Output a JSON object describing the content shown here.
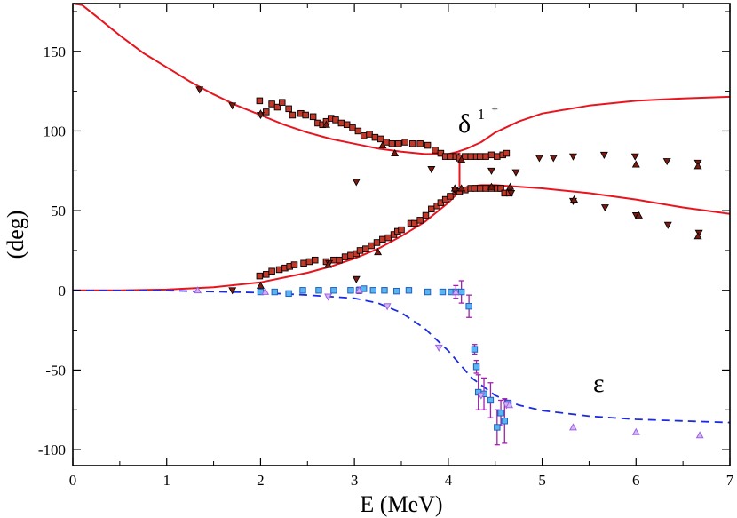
{
  "chart_data": {
    "type": "scatter",
    "title": "",
    "xlabel": "E (MeV)",
    "ylabel": "(deg)",
    "xlim": [
      0,
      7
    ],
    "ylim": [
      -110,
      180
    ],
    "xticks": [
      0,
      1,
      2,
      3,
      4,
      5,
      6,
      7
    ],
    "yticks": [
      -100,
      -50,
      0,
      50,
      100,
      150
    ],
    "ytick_labels": [
      "-100",
      "-50",
      "0",
      "50",
      "100",
      "150"
    ],
    "grid": false,
    "colors": {
      "delta": "#e8141e",
      "epsilon": "#1a2be0",
      "square_fill": "#c0392b",
      "square_edge": "#000000",
      "triangle_fill": "#7a1a10",
      "blue_square_fill": "#5ab4f0",
      "blue_square_edge": "#2060c0",
      "violet": "#a060e0",
      "errorbar": "#a020b0"
    },
    "annotations": [
      {
        "id": "delta",
        "text": "δ",
        "sup": "1",
        "sup2": "+",
        "color": "#e8141e"
      },
      {
        "id": "epsilon",
        "text": "ε",
        "color": "#1a2be0"
      }
    ],
    "series": [
      {
        "name": "delta-curve-upper",
        "kind": "line",
        "color": "#e8141e",
        "points": [
          [
            0,
            180
          ],
          [
            0.1,
            179
          ],
          [
            0.25,
            172
          ],
          [
            0.5,
            160
          ],
          [
            0.75,
            149
          ],
          [
            1,
            140
          ],
          [
            1.25,
            131
          ],
          [
            1.5,
            123
          ],
          [
            1.75,
            116
          ],
          [
            2,
            110
          ],
          [
            2.25,
            104
          ],
          [
            2.5,
            99
          ],
          [
            2.75,
            95
          ],
          [
            3,
            92
          ],
          [
            3.25,
            89
          ],
          [
            3.5,
            87
          ],
          [
            3.75,
            85.5
          ],
          [
            4,
            85.5
          ],
          [
            4.1,
            87
          ],
          [
            4.2,
            89
          ],
          [
            4.35,
            93
          ],
          [
            4.5,
            99
          ],
          [
            4.75,
            106
          ],
          [
            5,
            111
          ],
          [
            5.5,
            116
          ],
          [
            6,
            119
          ],
          [
            6.5,
            120.5
          ],
          [
            7,
            121.5
          ]
        ]
      },
      {
        "name": "delta-curve-lower",
        "kind": "line",
        "color": "#e8141e",
        "points": [
          [
            0,
            0
          ],
          [
            0.5,
            0
          ],
          [
            1,
            0.5
          ],
          [
            1.5,
            2
          ],
          [
            2,
            5
          ],
          [
            2.25,
            8
          ],
          [
            2.5,
            11
          ],
          [
            2.75,
            15
          ],
          [
            3,
            20
          ],
          [
            3.25,
            26
          ],
          [
            3.5,
            34
          ],
          [
            3.75,
            43
          ],
          [
            4,
            55
          ],
          [
            4.1,
            61
          ],
          [
            4.2,
            65
          ],
          [
            4.35,
            66
          ],
          [
            4.5,
            66
          ],
          [
            5,
            64
          ],
          [
            5.5,
            61
          ],
          [
            6,
            57
          ],
          [
            6.5,
            52
          ],
          [
            7,
            48
          ]
        ]
      },
      {
        "name": "delta-curve-connector",
        "kind": "line",
        "color": "#e8141e",
        "points": [
          [
            4.12,
            86.5
          ],
          [
            4.12,
            65
          ]
        ]
      },
      {
        "name": "epsilon-curve",
        "kind": "dashed-line",
        "color": "#1a2be0",
        "points": [
          [
            0,
            0
          ],
          [
            1,
            -0.2
          ],
          [
            2,
            -1.5
          ],
          [
            2.5,
            -3
          ],
          [
            3,
            -5
          ],
          [
            3.25,
            -8
          ],
          [
            3.5,
            -14
          ],
          [
            3.75,
            -24
          ],
          [
            4,
            -38
          ],
          [
            4.25,
            -55
          ],
          [
            4.5,
            -66
          ],
          [
            4.75,
            -72
          ],
          [
            5,
            -75.5
          ],
          [
            5.5,
            -79
          ],
          [
            6,
            -81
          ],
          [
            6.5,
            -82
          ],
          [
            7,
            -83
          ]
        ]
      },
      {
        "name": "delta-squares-upper",
        "kind": "marker",
        "marker": "square",
        "points": [
          [
            1.99,
            119
          ],
          [
            2.06,
            112
          ],
          [
            2.12,
            117
          ],
          [
            2.18,
            115
          ],
          [
            2.23,
            118
          ],
          [
            2.3,
            114
          ],
          [
            2.34,
            110
          ],
          [
            2.43,
            111
          ],
          [
            2.48,
            110
          ],
          [
            2.56,
            109
          ],
          [
            2.61,
            105
          ],
          [
            2.66,
            104
          ],
          [
            2.7,
            106
          ],
          [
            2.75,
            108
          ],
          [
            2.8,
            107
          ],
          [
            2.86,
            105
          ],
          [
            2.92,
            104
          ],
          [
            2.98,
            102
          ],
          [
            3.04,
            100
          ],
          [
            3.1,
            97
          ],
          [
            3.16,
            98
          ],
          [
            3.22,
            96
          ],
          [
            3.28,
            95
          ],
          [
            3.34,
            93
          ],
          [
            3.4,
            92
          ],
          [
            3.47,
            92
          ],
          [
            3.54,
            93
          ],
          [
            3.62,
            92
          ],
          [
            3.7,
            92
          ],
          [
            3.78,
            91
          ],
          [
            3.86,
            88
          ],
          [
            3.92,
            86
          ],
          [
            3.97,
            84
          ],
          [
            4.02,
            84
          ],
          [
            4.08,
            84
          ],
          [
            4.12,
            83
          ],
          [
            4.18,
            84
          ],
          [
            4.24,
            84
          ],
          [
            4.3,
            84
          ],
          [
            4.34,
            84
          ],
          [
            4.4,
            84
          ],
          [
            4.46,
            85
          ],
          [
            4.52,
            84
          ],
          [
            4.58,
            85
          ],
          [
            4.62,
            86
          ]
        ]
      },
      {
        "name": "delta-squares-lower",
        "kind": "marker",
        "marker": "square",
        "points": [
          [
            1.99,
            9
          ],
          [
            2.06,
            10
          ],
          [
            2.12,
            12
          ],
          [
            2.2,
            13
          ],
          [
            2.26,
            14
          ],
          [
            2.31,
            15
          ],
          [
            2.36,
            16
          ],
          [
            2.46,
            17
          ],
          [
            2.52,
            18
          ],
          [
            2.58,
            19
          ],
          [
            2.7,
            18
          ],
          [
            2.78,
            19
          ],
          [
            2.84,
            19
          ],
          [
            2.9,
            21
          ],
          [
            2.96,
            22
          ],
          [
            3.02,
            23
          ],
          [
            3.06,
            25
          ],
          [
            3.12,
            26
          ],
          [
            3.18,
            28
          ],
          [
            3.24,
            30
          ],
          [
            3.3,
            32
          ],
          [
            3.36,
            33
          ],
          [
            3.42,
            35
          ],
          [
            3.46,
            37
          ],
          [
            3.5,
            38
          ],
          [
            3.6,
            42
          ],
          [
            3.64,
            42
          ],
          [
            3.7,
            44
          ],
          [
            3.76,
            47
          ],
          [
            3.82,
            51
          ],
          [
            3.88,
            53
          ],
          [
            3.92,
            55
          ],
          [
            3.97,
            57
          ],
          [
            4.02,
            59
          ],
          [
            4.08,
            62
          ],
          [
            4.12,
            62
          ],
          [
            4.18,
            63
          ],
          [
            4.24,
            64
          ],
          [
            4.28,
            64
          ],
          [
            4.34,
            64
          ],
          [
            4.4,
            64
          ],
          [
            4.46,
            64
          ],
          [
            4.52,
            64
          ],
          [
            4.56,
            64
          ],
          [
            4.6,
            61
          ],
          [
            4.65,
            61
          ]
        ]
      },
      {
        "name": "delta-triangles-down",
        "kind": "marker",
        "marker": "triangle-down",
        "points": [
          [
            1.35,
            126
          ],
          [
            1.7,
            116
          ],
          [
            2,
            110
          ],
          [
            3.02,
            68
          ],
          [
            3.82,
            76
          ],
          [
            4.07,
            63
          ],
          [
            4.46,
            75
          ],
          [
            4.67,
            61
          ],
          [
            4.72,
            74
          ],
          [
            4.97,
            83
          ],
          [
            5.12,
            83
          ],
          [
            5.33,
            84
          ],
          [
            5.33,
            56
          ],
          [
            5.66,
            85
          ],
          [
            5.67,
            52
          ],
          [
            5.99,
            84
          ],
          [
            6,
            47
          ],
          [
            6.33,
            81
          ],
          [
            6.34,
            41
          ],
          [
            6.66,
            80
          ],
          [
            6.67,
            36
          ],
          [
            1.7,
            0
          ],
          [
            2.73,
            17
          ],
          [
            3.02,
            7
          ]
        ]
      },
      {
        "name": "delta-triangles-up",
        "kind": "marker",
        "marker": "triangle-up",
        "points": [
          [
            2,
            111
          ],
          [
            2.7,
            104
          ],
          [
            3.3,
            91
          ],
          [
            3.43,
            86
          ],
          [
            4.14,
            82
          ],
          [
            4.46,
            65
          ],
          [
            4.66,
            65
          ],
          [
            6,
            79
          ],
          [
            6.66,
            78
          ],
          [
            5.34,
            57
          ],
          [
            6.03,
            47
          ],
          [
            6.66,
            34
          ],
          [
            2,
            3
          ],
          [
            2.72,
            16
          ],
          [
            3.25,
            24
          ],
          [
            4.07,
            64
          ],
          [
            4.14,
            64
          ]
        ]
      },
      {
        "name": "epsilon-squares",
        "kind": "marker",
        "marker": "square-blue",
        "points": [
          [
            2,
            -1
          ],
          [
            2.15,
            -1
          ],
          [
            2.3,
            -2
          ],
          [
            2.45,
            0
          ],
          [
            2.62,
            0
          ],
          [
            2.78,
            0
          ],
          [
            2.96,
            0
          ],
          [
            3.05,
            0
          ],
          [
            3.1,
            1
          ],
          [
            3.2,
            0
          ],
          [
            3.32,
            0
          ],
          [
            3.45,
            -0.5
          ],
          [
            3.58,
            0
          ],
          [
            3.78,
            -1
          ],
          [
            3.94,
            -1
          ],
          [
            4.03,
            -1
          ],
          [
            4.08,
            -1
          ],
          [
            4.14,
            -1
          ],
          [
            4.22,
            -10
          ],
          [
            4.28,
            -37
          ],
          [
            4.3,
            -48
          ],
          [
            4.32,
            -64
          ],
          [
            4.38,
            -65
          ],
          [
            4.45,
            -69
          ],
          [
            4.52,
            -86
          ],
          [
            4.56,
            -77
          ],
          [
            4.6,
            -82
          ],
          [
            4.64,
            -71
          ]
        ]
      },
      {
        "name": "epsilon-triangles-down",
        "kind": "marker",
        "marker": "triangle-down-violet",
        "points": [
          [
            2.72,
            -4
          ],
          [
            3.35,
            -10
          ],
          [
            3.9,
            -36
          ],
          [
            4.35,
            -66
          ],
          [
            4.62,
            -72
          ]
        ]
      },
      {
        "name": "epsilon-triangles-up",
        "kind": "marker",
        "marker": "triangle-up-violet",
        "points": [
          [
            1.33,
            0
          ],
          [
            2.05,
            -1
          ],
          [
            3.05,
            0
          ],
          [
            4.08,
            -1
          ],
          [
            4.65,
            -72
          ],
          [
            5.33,
            -86
          ],
          [
            6,
            -89
          ],
          [
            6.68,
            -91
          ]
        ]
      }
    ],
    "errorbars": [
      {
        "x": 3.05,
        "y": 0,
        "err": 2
      },
      {
        "x": 4.08,
        "y": -1,
        "err": 4
      },
      {
        "x": 4.14,
        "y": -1,
        "err": 7
      },
      {
        "x": 4.22,
        "y": -10,
        "err": 7
      },
      {
        "x": 4.28,
        "y": -37,
        "err": 3
      },
      {
        "x": 4.3,
        "y": -48,
        "err": 4
      },
      {
        "x": 4.32,
        "y": -64,
        "err": 11
      },
      {
        "x": 4.38,
        "y": -65,
        "err": 10
      },
      {
        "x": 4.45,
        "y": -69,
        "err": 11
      },
      {
        "x": 4.52,
        "y": -86,
        "err": 11
      },
      {
        "x": 4.56,
        "y": -77,
        "err": 8
      },
      {
        "x": 4.6,
        "y": -82,
        "err": 14
      },
      {
        "x": 4.64,
        "y": -71,
        "err": 2
      }
    ]
  }
}
